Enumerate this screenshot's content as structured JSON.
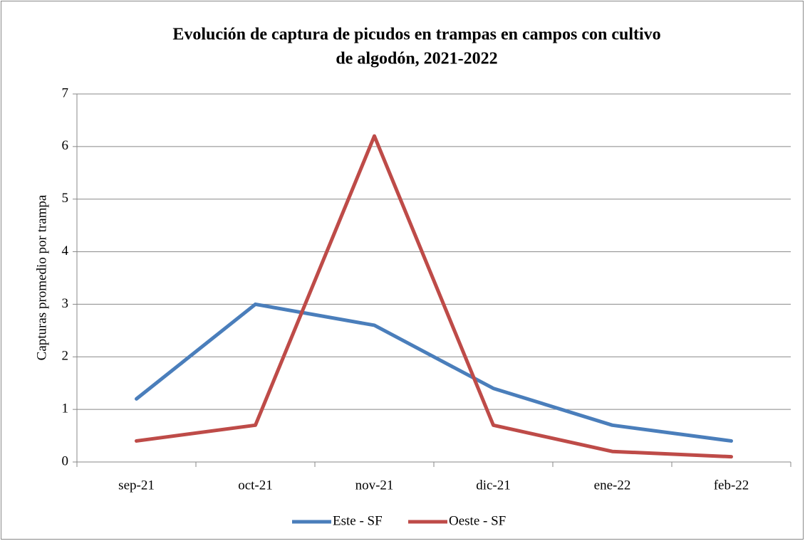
{
  "chart_data": {
    "type": "line",
    "title": [
      "Evolución de captura de picudos en trampas en campos con cultivo",
      "de algodón, 2021-2022"
    ],
    "y_label": "Capturas promedio por trampa",
    "categories": [
      "sep-21",
      "oct-21",
      "nov-21",
      "dic-21",
      "ene-22",
      "feb-22"
    ],
    "series": [
      {
        "name": "Este - SF",
        "color": "#4a7ebb",
        "values": [
          1.2,
          3.0,
          2.6,
          1.4,
          0.7,
          0.4
        ]
      },
      {
        "name": "Oeste - SF",
        "color": "#be4b48",
        "values": [
          0.4,
          0.7,
          6.2,
          0.7,
          0.2,
          0.1
        ]
      }
    ],
    "ylim": [
      0,
      7
    ],
    "yticks": [
      0,
      1,
      2,
      3,
      4,
      5,
      6,
      7
    ],
    "grid": true,
    "legend": "bottom"
  }
}
